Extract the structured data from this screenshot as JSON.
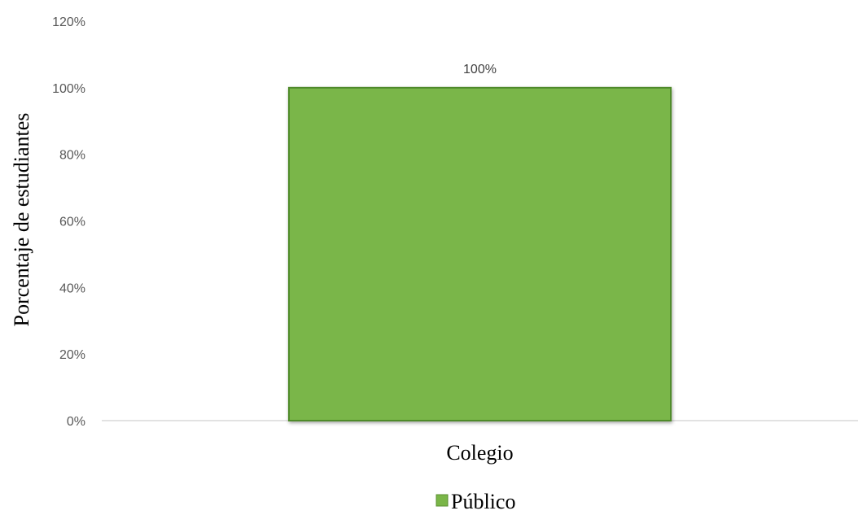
{
  "chart_data": {
    "type": "bar",
    "categories": [
      "Colegio"
    ],
    "series": [
      {
        "name": "Público",
        "values": [
          100
        ],
        "color": "#7AB648",
        "data_labels": [
          "100%"
        ]
      }
    ],
    "title": "",
    "xlabel": "",
    "ylabel": "Porcentaje de  estudiantes",
    "ylim": [
      0,
      120
    ],
    "yticks": [
      0,
      20,
      40,
      60,
      80,
      100,
      120
    ],
    "ytick_labels": [
      "0%",
      "20%",
      "40%",
      "60%",
      "80%",
      "100%",
      "120%"
    ],
    "grid": false,
    "legend": {
      "position": "bottom",
      "entries": [
        "Público"
      ]
    }
  }
}
